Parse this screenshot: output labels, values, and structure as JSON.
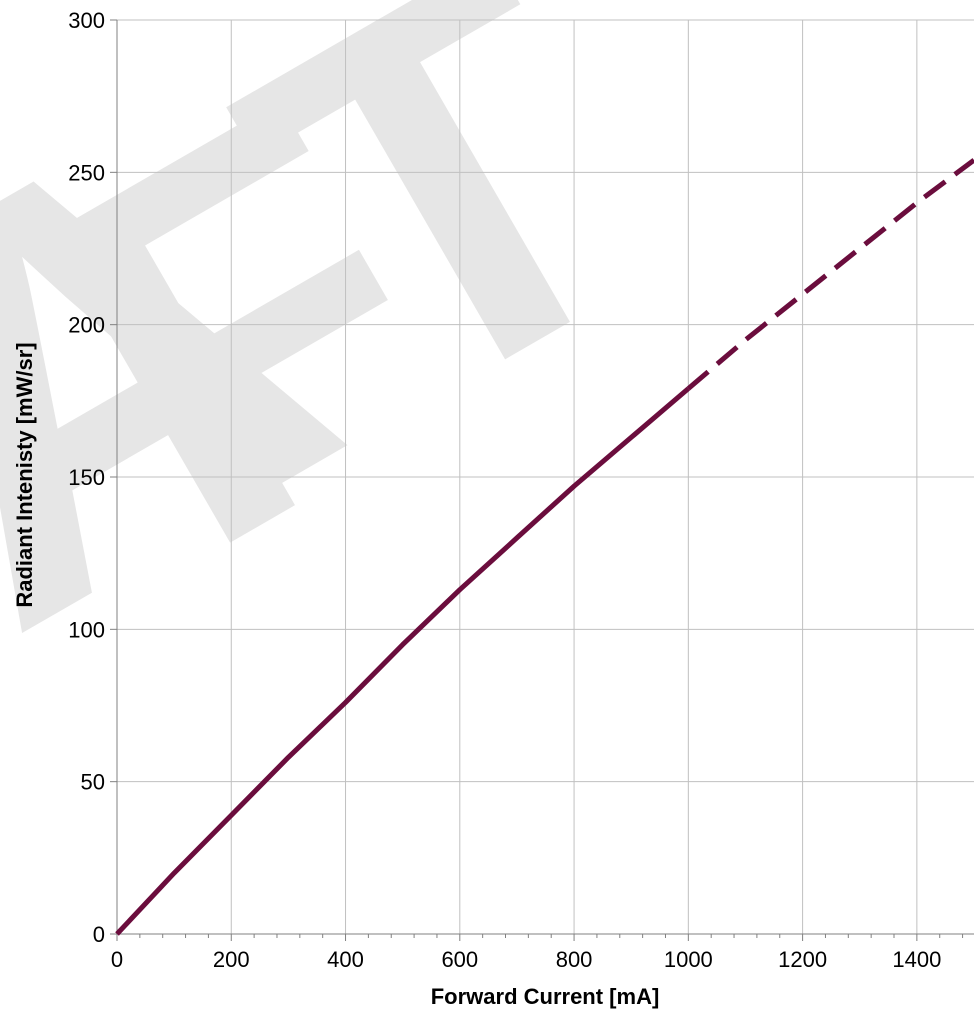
{
  "chart_data": {
    "type": "line",
    "title": "",
    "xlabel": "Forward Current [mA]",
    "ylabel": "Radiant Intenisty [mW/sr]",
    "xlim": [
      0,
      1500
    ],
    "ylim": [
      0,
      300
    ],
    "x_ticks": [
      0,
      200,
      400,
      600,
      800,
      1000,
      1200,
      1400
    ],
    "x_tick_labels": [
      "0",
      "200",
      "400",
      "600",
      "800",
      "1000",
      "1200",
      "1400"
    ],
    "x_minor_tick_step": 40,
    "y_ticks": [
      0,
      50,
      100,
      150,
      200,
      250,
      300
    ],
    "y_tick_labels": [
      "0",
      "50",
      "100",
      "150",
      "200",
      "250",
      "300"
    ],
    "grid": true,
    "legend": "none",
    "series": [
      {
        "style": "solid",
        "color": "#6b0d3d",
        "x": [
          0,
          100,
          200,
          300,
          400,
          500,
          600,
          700,
          800,
          900,
          1000
        ],
        "y": [
          0,
          20,
          39,
          58,
          76,
          95,
          113,
          130,
          147,
          163,
          179
        ]
      },
      {
        "style": "dashed",
        "color": "#6b0d3d",
        "x": [
          1000,
          1100,
          1200,
          1300,
          1400,
          1500
        ],
        "y": [
          179,
          195,
          210,
          225,
          240,
          254
        ]
      }
    ],
    "watermark": {
      "letters": [
        "A",
        "F",
        "T"
      ],
      "color": "#e6e6e6"
    }
  }
}
